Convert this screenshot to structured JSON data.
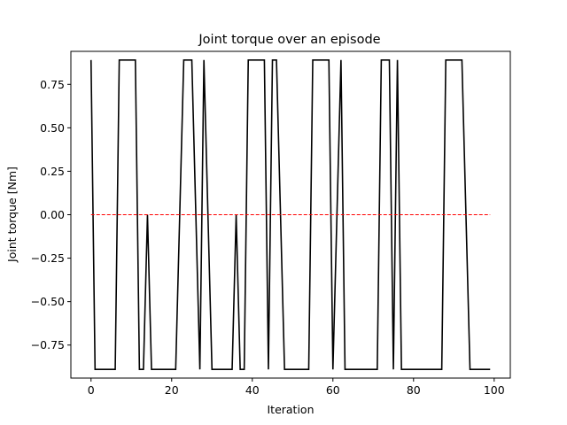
{
  "chart_data": {
    "type": "line",
    "title": "Joint torque over an episode",
    "xlabel": "Iteration",
    "ylabel": "Joint torque [Nm]",
    "xlim": [
      -5,
      104
    ],
    "ylim": [
      -0.94,
      0.94
    ],
    "xticks": [
      0,
      20,
      40,
      60,
      80,
      100
    ],
    "yticks": [
      -0.75,
      -0.5,
      -0.25,
      0.0,
      0.25,
      0.5,
      0.75
    ],
    "ytick_labels": [
      "−0.75",
      "−0.50",
      "−0.25",
      "0.00",
      "0.25",
      "0.50",
      "0.75"
    ],
    "grid": false,
    "series": [
      {
        "color": "#000000",
        "style": "solid",
        "x": [
          0,
          1,
          2,
          3,
          4,
          5,
          6,
          7,
          8,
          9,
          10,
          11,
          12,
          13,
          14,
          15,
          16,
          17,
          18,
          19,
          20,
          21,
          22,
          23,
          24,
          25,
          26,
          27,
          28,
          29,
          30,
          31,
          32,
          33,
          34,
          35,
          36,
          37,
          38,
          39,
          40,
          41,
          42,
          43,
          44,
          45,
          46,
          47,
          48,
          49,
          50,
          51,
          52,
          53,
          54,
          55,
          56,
          57,
          58,
          59,
          60,
          61,
          62,
          63,
          64,
          65,
          66,
          67,
          68,
          69,
          70,
          71,
          72,
          73,
          74,
          75,
          76,
          77,
          78,
          79,
          80,
          81,
          82,
          83,
          84,
          85,
          86,
          87,
          88,
          89,
          90,
          91,
          92,
          93,
          94,
          95,
          96,
          97,
          98,
          99
        ],
        "y": [
          0.89,
          -0.89,
          -0.89,
          -0.89,
          -0.89,
          -0.89,
          -0.89,
          0.89,
          0.89,
          0.89,
          0.89,
          0.89,
          -0.89,
          -0.89,
          0.0,
          -0.89,
          -0.89,
          -0.89,
          -0.89,
          -0.89,
          -0.89,
          -0.89,
          0.0,
          0.89,
          0.89,
          0.89,
          0.0,
          -0.89,
          0.89,
          0.0,
          -0.89,
          -0.89,
          -0.89,
          -0.89,
          -0.89,
          -0.89,
          0.0,
          -0.89,
          -0.89,
          0.89,
          0.89,
          0.89,
          0.89,
          0.89,
          -0.89,
          0.89,
          0.89,
          0.0,
          -0.89,
          -0.89,
          -0.89,
          -0.89,
          -0.89,
          -0.89,
          -0.89,
          0.89,
          0.89,
          0.89,
          0.89,
          0.89,
          -0.89,
          0.0,
          0.89,
          -0.89,
          -0.89,
          -0.89,
          -0.89,
          -0.89,
          -0.89,
          -0.89,
          -0.89,
          -0.89,
          0.89,
          0.89,
          0.89,
          -0.89,
          0.89,
          -0.89,
          -0.89,
          -0.89,
          -0.89,
          -0.89,
          -0.89,
          -0.89,
          -0.89,
          -0.89,
          -0.89,
          -0.89,
          0.89,
          0.89,
          0.89,
          0.89,
          0.89,
          0.0,
          -0.89,
          -0.89,
          -0.89,
          -0.89,
          -0.89,
          -0.89
        ]
      },
      {
        "color": "#ff0000",
        "style": "dashed",
        "x": [
          0,
          99
        ],
        "y": [
          0,
          0
        ]
      }
    ]
  }
}
